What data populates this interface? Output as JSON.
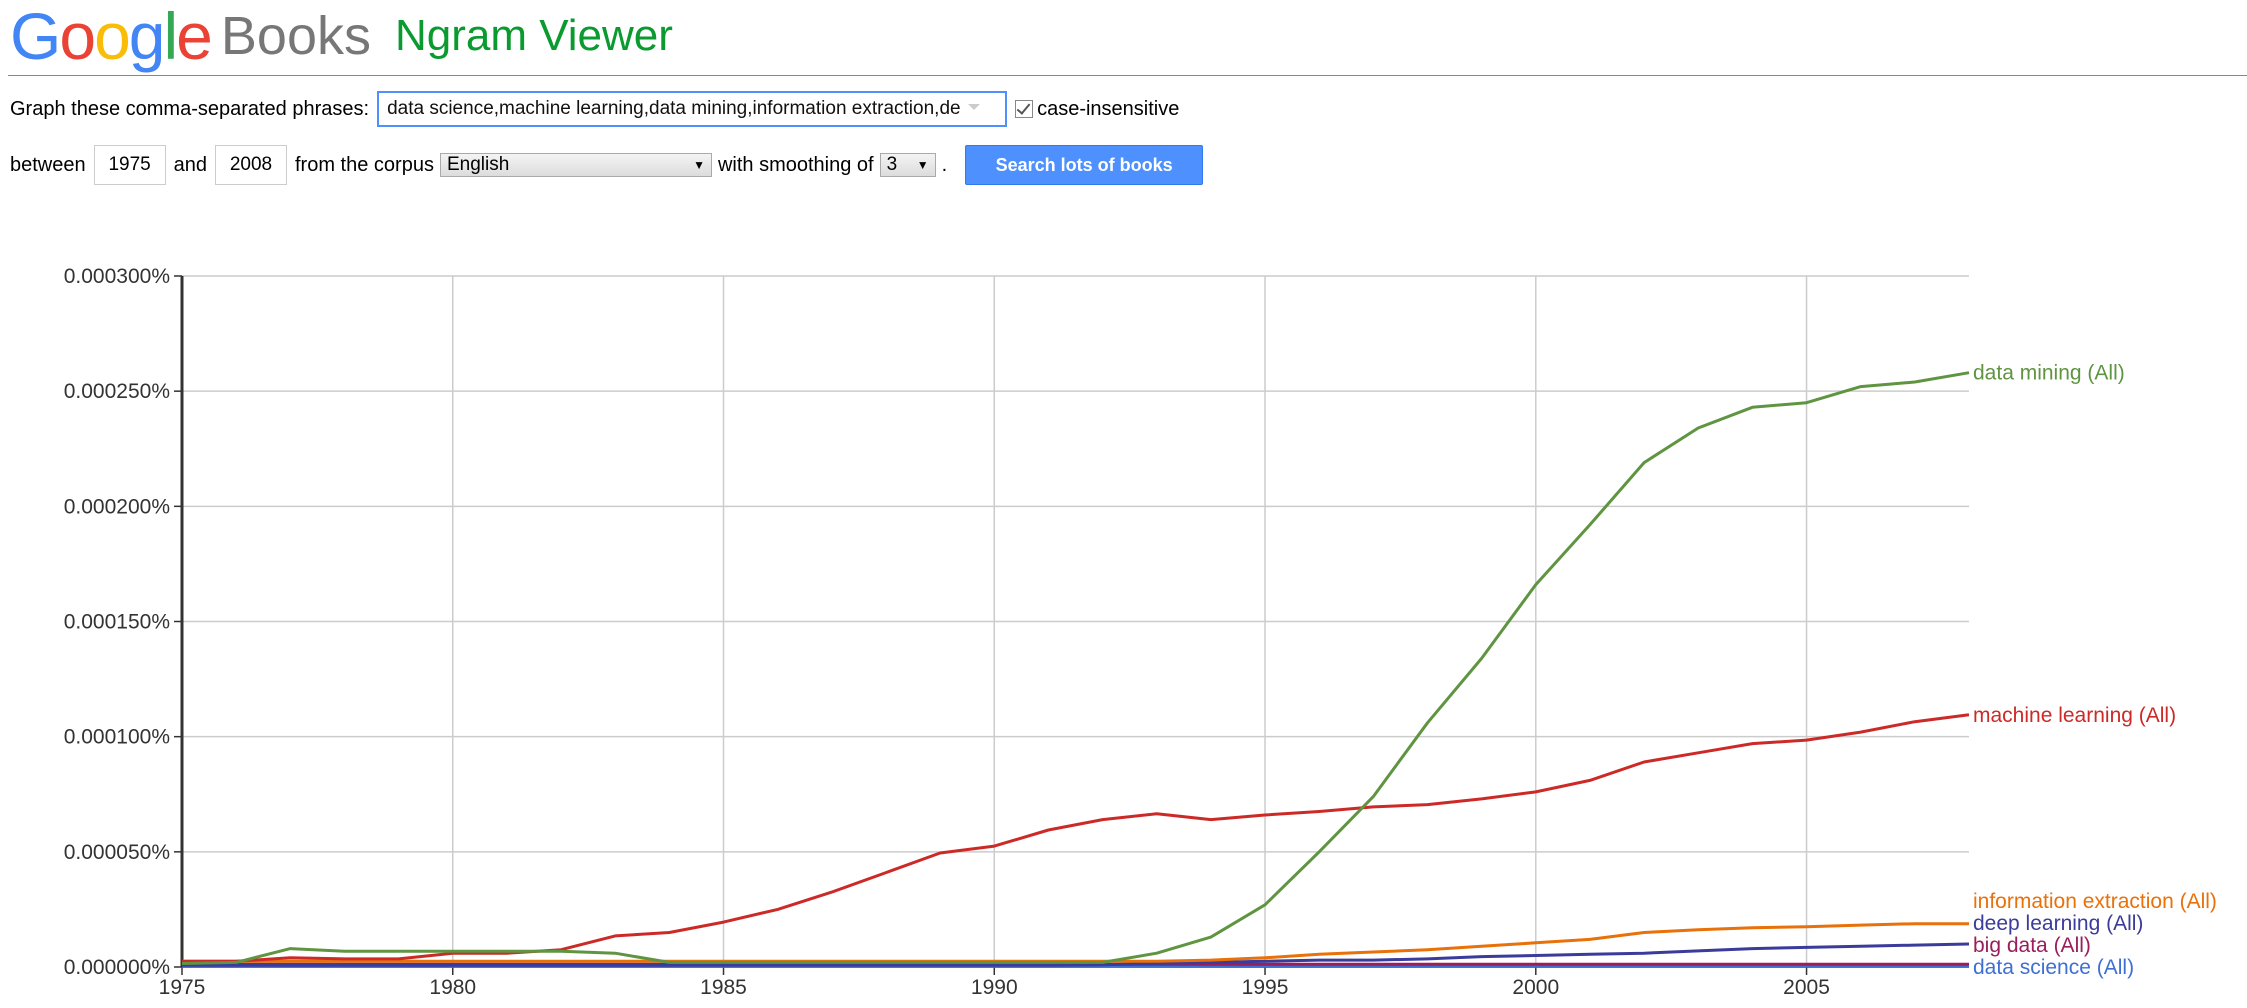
{
  "header": {
    "logo_letters": [
      {
        "ch": "G",
        "color": "#4285f4"
      },
      {
        "ch": "o",
        "color": "#ea4335"
      },
      {
        "ch": "o",
        "color": "#fbbc05"
      },
      {
        "ch": "g",
        "color": "#4285f4"
      },
      {
        "ch": "l",
        "color": "#34a853"
      },
      {
        "ch": "e",
        "color": "#ea4335"
      }
    ],
    "books": "Books",
    "title": "Ngram Viewer"
  },
  "form": {
    "phrases_label": "Graph these comma-separated phrases:",
    "phrases_value": "data science,machine learning,data mining,information extraction,de",
    "case_label": "case-insensitive",
    "between_label": "between",
    "start_year": "1975",
    "and_label": "and",
    "end_year": "2008",
    "corpus_label": "from the corpus",
    "corpus_value": "English",
    "smoothing_label": "with smoothing of",
    "smoothing_value": "3",
    "period": ".",
    "search_label": "Search lots of books"
  },
  "chart_data": {
    "type": "line",
    "x_range": [
      1975,
      2008
    ],
    "y_range": [
      0,
      0.0003
    ],
    "x_ticks": [
      1975,
      1980,
      1985,
      1990,
      1995,
      2000,
      2005
    ],
    "x_tick_labels": [
      "1975",
      "1980",
      "1985",
      "1990",
      "1995",
      "2000",
      "2005"
    ],
    "y_ticks": [
      0,
      5e-05,
      0.0001,
      0.00015,
      0.0002,
      0.00025,
      0.0003
    ],
    "y_tick_labels": [
      "0.000000%",
      "0.000050%",
      "0.000100%",
      "0.000150%",
      "0.000200%",
      "0.000250%",
      "0.000300%"
    ],
    "grid": true,
    "x": [
      1975,
      1976,
      1977,
      1978,
      1979,
      1980,
      1981,
      1982,
      1983,
      1984,
      1985,
      1986,
      1987,
      1988,
      1989,
      1990,
      1991,
      1992,
      1993,
      1994,
      1995,
      1996,
      1997,
      1998,
      1999,
      2000,
      2001,
      2002,
      2003,
      2004,
      2005,
      2006,
      2007,
      2008
    ],
    "series": [
      {
        "name": "data mining (All)",
        "color": "#5f9441",
        "values": [
          1.5e-06,
          2e-06,
          8e-06,
          6.8e-06,
          6.8e-06,
          6.8e-06,
          6.8e-06,
          6.8e-06,
          6e-06,
          2e-06,
          2e-06,
          2e-06,
          2e-06,
          2e-06,
          2e-06,
          2e-06,
          2e-06,
          2e-06,
          6e-06,
          1.3e-05,
          2.7e-05,
          5e-05,
          7.4e-05,
          0.000106,
          0.000134,
          0.000166,
          0.000192,
          0.000219,
          0.000234,
          0.000243,
          0.000245,
          0.000252,
          0.000254,
          0.000258
        ]
      },
      {
        "name": "machine learning (All)",
        "color": "#cc2a27",
        "values": [
          2.5e-06,
          2.5e-06,
          4e-06,
          3.5e-06,
          3.5e-06,
          6e-06,
          6e-06,
          7.5e-06,
          1.35e-05,
          1.5e-05,
          1.95e-05,
          2.5e-05,
          3.25e-05,
          4.1e-05,
          4.95e-05,
          5.25e-05,
          5.95e-05,
          6.4e-05,
          6.65e-05,
          6.4e-05,
          6.6e-05,
          6.75e-05,
          6.95e-05,
          7.05e-05,
          7.3e-05,
          7.6e-05,
          8.1e-05,
          8.9e-05,
          9.3e-05,
          9.7e-05,
          9.85e-05,
          0.000102,
          0.0001065,
          0.0001095
        ]
      },
      {
        "name": "information extraction (All)",
        "color": "#e8710a",
        "values": [
          2.5e-06,
          2.5e-06,
          2.5e-06,
          2.5e-06,
          2.5e-06,
          2.5e-06,
          2.5e-06,
          2.5e-06,
          2.5e-06,
          2.5e-06,
          2.5e-06,
          2.5e-06,
          2.5e-06,
          2.5e-06,
          2.5e-06,
          2.5e-06,
          2.5e-06,
          2.5e-06,
          2.5e-06,
          3e-06,
          4e-06,
          5.5e-06,
          6.5e-06,
          7.5e-06,
          9e-06,
          1.05e-05,
          1.2e-05,
          1.5e-05,
          1.62e-05,
          1.7e-05,
          1.75e-05,
          1.82e-05,
          1.88e-05,
          1.88e-05
        ]
      },
      {
        "name": "deep learning (All)",
        "color": "#3b3b9c",
        "values": [
          8e-07,
          8e-07,
          8e-07,
          8e-07,
          8e-07,
          8e-07,
          8e-07,
          8e-07,
          8e-07,
          8e-07,
          8e-07,
          8e-07,
          8e-07,
          8e-07,
          8e-07,
          8e-07,
          8e-07,
          1e-06,
          1.5e-06,
          2e-06,
          2.5e-06,
          3e-06,
          3e-06,
          3.5e-06,
          4.5e-06,
          5e-06,
          5.5e-06,
          6e-06,
          7e-06,
          8e-06,
          8.5e-06,
          9e-06,
          9.5e-06,
          1e-05
        ]
      },
      {
        "name": "big data (All)",
        "color": "#991e5b",
        "values": [
          1.2e-06,
          1.2e-06,
          1.2e-06,
          1.2e-06,
          1.2e-06,
          1.2e-06,
          1.2e-06,
          1.2e-06,
          1.2e-06,
          1.2e-06,
          1.2e-06,
          1.2e-06,
          1.2e-06,
          1.2e-06,
          1.2e-06,
          1.2e-06,
          1.2e-06,
          1.2e-06,
          1.2e-06,
          1.2e-06,
          1.2e-06,
          1.2e-06,
          1.2e-06,
          1.2e-06,
          1.2e-06,
          1.2e-06,
          1.2e-06,
          1.2e-06,
          1.2e-06,
          1.2e-06,
          1.2e-06,
          1.2e-06,
          1.2e-06,
          1.2e-06
        ]
      },
      {
        "name": "data science (All)",
        "color": "#3e6fd3",
        "values": [
          3e-07,
          3e-07,
          3e-07,
          3e-07,
          3e-07,
          3e-07,
          3e-07,
          3e-07,
          3e-07,
          3e-07,
          3e-07,
          3e-07,
          3e-07,
          3e-07,
          3e-07,
          3e-07,
          3e-07,
          3e-07,
          3e-07,
          3e-07,
          3e-07,
          3e-07,
          3e-07,
          3e-07,
          3e-07,
          3e-07,
          3e-07,
          3e-07,
          3e-07,
          3e-07,
          3e-07,
          3e-07,
          3e-07,
          3e-07
        ]
      }
    ]
  }
}
